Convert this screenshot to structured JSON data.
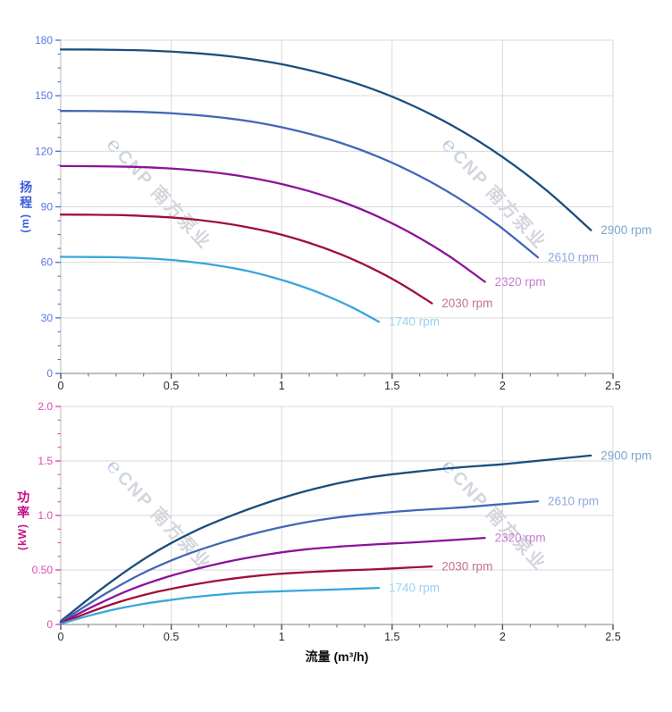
{
  "page": {
    "background": "#ffffff"
  },
  "watermark": {
    "logo_glyph": "℮",
    "text": "CNP 南方泵业",
    "text_color": "#d3d6dd",
    "logo_color": "#b6c8e7",
    "angle_deg": 47
  },
  "x_axis": {
    "title": "流量 (m³/h)",
    "tick_values": [
      0,
      0.5,
      1,
      1.5,
      2,
      2.5
    ],
    "tick_labels": [
      "0",
      "0.5",
      "1",
      "1.5",
      "2",
      "2.5"
    ],
    "minor_step": 0.125,
    "tick_label_color": "#2b2b2b",
    "title_color": "#111111"
  },
  "style": {
    "grid_color": "#d9d9d9",
    "y_axis_line_color": "#c6c6c6",
    "x_axis_line_color": "#9a9a9a",
    "x_tick_color": "#555555"
  },
  "chart_data": [
    {
      "type": "line",
      "name": "head-vs-flow",
      "title": "",
      "xlabel": "流量 (m³/h)",
      "ylabel": "扬程",
      "ylabel_unit": "(m)",
      "ylabel_color": "#3c5cd8",
      "xlim": [
        0,
        2.5
      ],
      "ylim": [
        0,
        180
      ],
      "grid": true,
      "legend_position": "curve-end-labels",
      "y_ticks": [
        0,
        30,
        60,
        90,
        120,
        150,
        180
      ],
      "y_tick_labels": [
        "0",
        "30",
        "60",
        "90",
        "120",
        "150",
        "180"
      ],
      "y_minor_step": 7.5,
      "y_tick_color": "#5b74e0",
      "series": [
        {
          "name": "2900 rpm",
          "color": "#1a4e7e",
          "label_color": "#7ba4cb",
          "x": [
            0,
            0.2,
            0.4,
            0.6,
            0.8,
            1.0,
            1.2,
            1.4,
            1.6,
            1.8,
            2.0,
            2.2,
            2.4
          ],
          "y": [
            175,
            174.9,
            174.4,
            173.1,
            170.8,
            167,
            161.5,
            154.1,
            144.3,
            132,
            116.9,
            98.8,
            77.4
          ]
        },
        {
          "name": "2610 rpm",
          "color": "#4367b7",
          "label_color": "#8fa9dd",
          "x": [
            0,
            0.18,
            0.36,
            0.54,
            0.72,
            0.9,
            1.08,
            1.26,
            1.44,
            1.62,
            1.8,
            1.98,
            2.16
          ],
          "y": [
            141.8,
            141.7,
            141.3,
            140.2,
            138.3,
            135.3,
            130.8,
            124.8,
            116.9,
            106.9,
            94.7,
            80,
            62.7
          ]
        },
        {
          "name": "2320 rpm",
          "color": "#8d119b",
          "label_color": "#c47ecf",
          "x": [
            0,
            0.16,
            0.32,
            0.48,
            0.64,
            0.8,
            0.96,
            1.12,
            1.28,
            1.44,
            1.6,
            1.76,
            1.92
          ],
          "y": [
            112,
            111.9,
            111.6,
            110.8,
            109.3,
            106.9,
            103.4,
            98.6,
            92.4,
            84.5,
            74.8,
            63.2,
            49.5
          ]
        },
        {
          "name": "2030 rpm",
          "color": "#9e1136",
          "label_color": "#c3718f",
          "x": [
            0,
            0.14,
            0.28,
            0.42,
            0.56,
            0.7,
            0.84,
            0.98,
            1.12,
            1.26,
            1.4,
            1.54,
            1.68
          ],
          "y": [
            85.8,
            85.7,
            85.5,
            84.8,
            83.7,
            81.8,
            79.1,
            75.5,
            70.7,
            64.7,
            57.3,
            48.4,
            37.9
          ]
        },
        {
          "name": "1740 rpm",
          "color": "#39a6dd",
          "label_color": "#9ad2ef",
          "x": [
            0,
            0.12,
            0.24,
            0.36,
            0.48,
            0.6,
            0.72,
            0.84,
            0.96,
            1.08,
            1.2,
            1.32,
            1.44
          ],
          "y": [
            63,
            62.9,
            62.8,
            62.3,
            61.5,
            60.1,
            58.1,
            55.5,
            51.9,
            47.5,
            42.1,
            35.6,
            27.9
          ]
        }
      ]
    },
    {
      "type": "line",
      "name": "power-vs-flow",
      "title": "",
      "xlabel": "流量 (m³/h)",
      "ylabel": "功率",
      "ylabel_unit": "(kW)",
      "ylabel_color": "#c40d86",
      "xlim": [
        0,
        2.5
      ],
      "ylim": [
        0,
        2.0
      ],
      "grid": true,
      "legend_position": "curve-end-labels",
      "y_ticks": [
        0,
        0.5,
        1.0,
        1.5,
        2.0
      ],
      "y_tick_labels": [
        "0",
        "0.50",
        "1.0",
        "1.5",
        "2.0"
      ],
      "y_minor_step": 0.125,
      "y_tick_color": "#e14aae",
      "series": [
        {
          "name": "2900 rpm",
          "color": "#1a4e7e",
          "label_color": "#7ba4cb",
          "x": [
            0,
            0.2,
            0.4,
            0.6,
            0.8,
            1.0,
            1.2,
            1.4,
            1.6,
            1.8,
            2.0,
            2.2,
            2.4
          ],
          "y": [
            0.03,
            0.35,
            0.63,
            0.85,
            1.02,
            1.16,
            1.27,
            1.35,
            1.4,
            1.44,
            1.47,
            1.51,
            1.55
          ]
        },
        {
          "name": "2610 rpm",
          "color": "#4367b7",
          "label_color": "#8fa9dd",
          "x": [
            0,
            0.18,
            0.36,
            0.54,
            0.72,
            0.9,
            1.08,
            1.26,
            1.44,
            1.62,
            1.8,
            1.98,
            2.16
          ],
          "y": [
            0.022,
            0.255,
            0.459,
            0.62,
            0.744,
            0.846,
            0.926,
            0.984,
            1.021,
            1.05,
            1.072,
            1.101,
            1.13
          ]
        },
        {
          "name": "2320 rpm",
          "color": "#8d119b",
          "label_color": "#c47ecf",
          "x": [
            0,
            0.16,
            0.32,
            0.48,
            0.64,
            0.8,
            0.96,
            1.12,
            1.28,
            1.44,
            1.6,
            1.76,
            1.92
          ],
          "y": [
            0.015,
            0.179,
            0.323,
            0.435,
            0.522,
            0.594,
            0.65,
            0.691,
            0.717,
            0.737,
            0.753,
            0.773,
            0.794
          ]
        },
        {
          "name": "2030 rpm",
          "color": "#9e1136",
          "label_color": "#c3718f",
          "x": [
            0,
            0.14,
            0.28,
            0.42,
            0.56,
            0.7,
            0.84,
            0.98,
            1.12,
            1.26,
            1.4,
            1.54,
            1.68
          ],
          "y": [
            0.01,
            0.12,
            0.216,
            0.292,
            0.35,
            0.398,
            0.436,
            0.463,
            0.48,
            0.494,
            0.504,
            0.518,
            0.532
          ]
        },
        {
          "name": "1740 rpm",
          "color": "#39a6dd",
          "label_color": "#9ad2ef",
          "x": [
            0,
            0.12,
            0.24,
            0.36,
            0.48,
            0.6,
            0.72,
            0.84,
            0.96,
            1.08,
            1.2,
            1.32,
            1.44
          ],
          "y": [
            0.006,
            0.076,
            0.136,
            0.184,
            0.22,
            0.251,
            0.274,
            0.292,
            0.302,
            0.311,
            0.318,
            0.326,
            0.335
          ]
        }
      ]
    }
  ]
}
